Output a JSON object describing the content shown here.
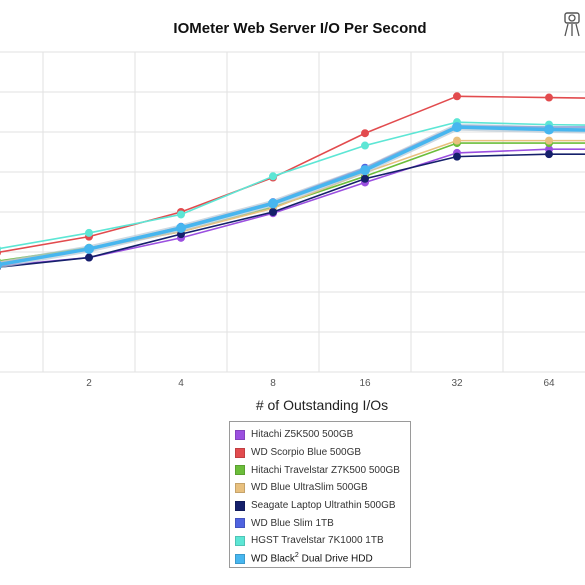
{
  "chart_data": {
    "type": "line",
    "title": "IOMeter Web Server I/O Per Second",
    "xlabel": "# of Outstanding I/Os",
    "ylabel": "",
    "x": [
      1,
      2,
      4,
      8,
      16,
      32,
      64,
      128
    ],
    "x_tick_labels": [
      "2",
      "4",
      "8",
      "16",
      "32",
      "64"
    ],
    "y_gridlines": 8,
    "grid": true,
    "legend_position": "bottom",
    "series": [
      {
        "name": "Hitachi Z5K500 500GB",
        "color": "#9b4fe0",
        "values": [
          106,
          113,
          129,
          149,
          174,
          198,
          201,
          201
        ]
      },
      {
        "name": "WD Scorpio Blue 500GB",
        "color": "#e24b4e",
        "values": [
          117,
          130,
          150,
          178,
          214,
          244,
          243,
          242
        ]
      },
      {
        "name": "Hitachi Travelstar Z7K500 500GB",
        "color": "#6bbd3a",
        "values": [
          110,
          121,
          134,
          154,
          179,
          206,
          206,
          206
        ]
      },
      {
        "name": "WD Blue UltraSlim 500GB",
        "color": "#e8c07e",
        "values": [
          109,
          120,
          134,
          153,
          182,
          208,
          208,
          208
        ]
      },
      {
        "name": "Seagate Laptop Ultrathin 500GB",
        "color": "#15206b",
        "values": [
          105,
          113,
          132,
          150,
          177,
          195,
          197,
          197
        ]
      },
      {
        "name": "WD Blue Slim 1TB",
        "color": "#4f63e0",
        "values": [
          108,
          120,
          138,
          158,
          186,
          220,
          219,
          219
        ]
      },
      {
        "name": "HGST Travelstar 7K1000 1TB",
        "color": "#5de6d5",
        "values": [
          120,
          133,
          148,
          179,
          204,
          223,
          221,
          220
        ]
      },
      {
        "name": "WD Black2 Dual Drive HDD",
        "color": "#47b6ef",
        "values": [
          107,
          120,
          137,
          157,
          184,
          219,
          217,
          216
        ]
      }
    ],
    "legend": {
      "last_label_main": "WD Black",
      "last_label_sup": "2",
      "last_label_tail": " Dual Drive HDD"
    }
  }
}
